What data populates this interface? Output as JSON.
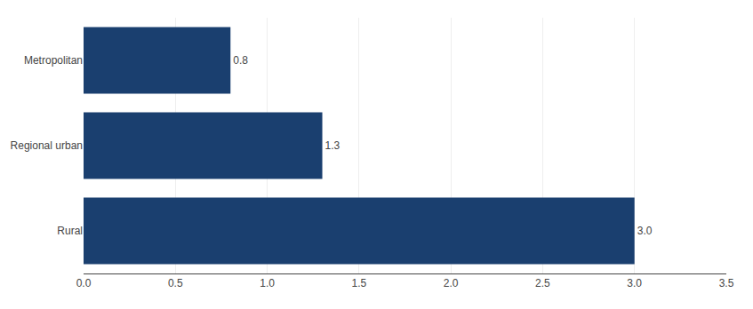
{
  "chart_data": {
    "type": "bar",
    "orientation": "horizontal",
    "categories": [
      "Metropolitan",
      "Regional urban",
      "Rural"
    ],
    "values": [
      0.8,
      1.3,
      3.0
    ],
    "value_labels": [
      "0.8",
      "1.3",
      "3.0"
    ],
    "data_labels": true,
    "color": "#1a3f6f",
    "xlim": [
      0,
      3.5
    ],
    "xticks": [
      {
        "value": 0,
        "label": "0.0"
      },
      0.5,
      {
        "value": 1,
        "label": "1.0"
      },
      1.5,
      {
        "value": 2,
        "label": "2.0"
      },
      2.5,
      {
        "value": 3,
        "label": "3.0"
      },
      3.5
    ],
    "grid": true
  }
}
